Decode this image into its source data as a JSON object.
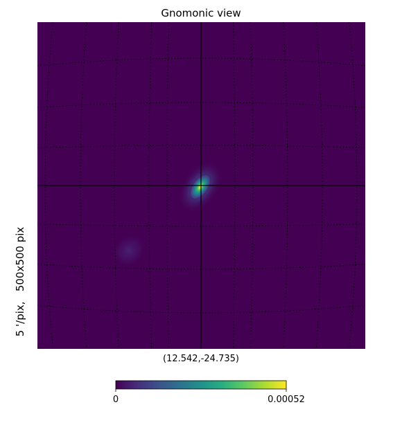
{
  "chart_data": {
    "type": "heatmap",
    "title": "Gnomonic view",
    "center_label": "(12.542,-24.735)",
    "side_label": "5 '/pix,   500x500 pix",
    "colormap": "viridis",
    "value_range": [
      0,
      0.00052
    ],
    "colorbar": {
      "min_label": "0",
      "max_label": "0.00052"
    },
    "grid": true,
    "crosshair": true,
    "features": [
      {
        "name": "bright-source",
        "peak_value": 0.00052
      },
      {
        "name": "faint-source",
        "peak_value": 3e-05
      }
    ],
    "colors": {
      "background": "#440154",
      "peak": "#fde725",
      "grid": "#000000"
    }
  }
}
